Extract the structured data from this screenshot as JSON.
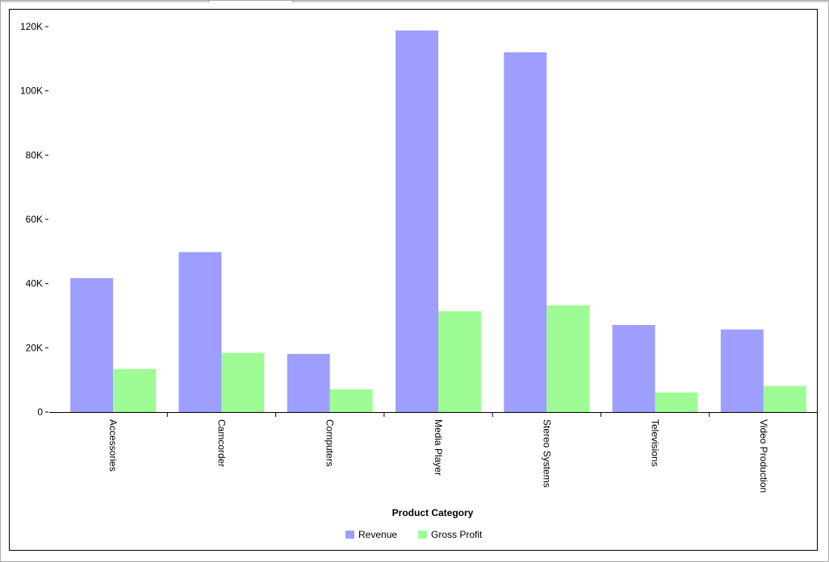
{
  "chart_data": {
    "type": "bar",
    "title": "",
    "xlabel": "Product Category",
    "ylabel": "",
    "categories": [
      "Accessories",
      "Camcorder",
      "Computers",
      "Media Player",
      "Stereo Systems",
      "Televisions",
      "Video Production"
    ],
    "series": [
      {
        "name": "Revenue",
        "color": "#9e9eff",
        "values": [
          41700,
          49800,
          18100,
          118800,
          112000,
          27100,
          25700
        ]
      },
      {
        "name": "Gross Profit",
        "color": "#9efc94",
        "values": [
          13400,
          18400,
          7100,
          31400,
          33200,
          6100,
          8100
        ]
      }
    ],
    "ylim": [
      0,
      120000
    ],
    "yticks": [
      {
        "value": 0,
        "label": "0"
      },
      {
        "value": 20000,
        "label": "20K"
      },
      {
        "value": 40000,
        "label": "40K"
      },
      {
        "value": 60000,
        "label": "60K"
      },
      {
        "value": 80000,
        "label": "80K"
      },
      {
        "value": 100000,
        "label": "100K"
      },
      {
        "value": 120000,
        "label": "120K"
      }
    ],
    "grid": false,
    "legend_position": "bottom"
  }
}
